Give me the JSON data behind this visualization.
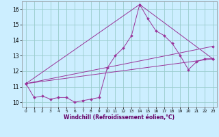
{
  "xlabel": "Windchill (Refroidissement éolien,°C)",
  "bg_color": "#cceeff",
  "grid_color": "#99cccc",
  "line_color": "#993399",
  "xlim": [
    -0.5,
    23.5
  ],
  "ylim": [
    9.7,
    16.5
  ],
  "yticks": [
    10,
    11,
    12,
    13,
    14,
    15,
    16
  ],
  "xticks": [
    0,
    1,
    2,
    3,
    4,
    5,
    6,
    7,
    8,
    9,
    10,
    11,
    12,
    13,
    14,
    15,
    16,
    17,
    18,
    19,
    20,
    21,
    22,
    23
  ],
  "series": [
    {
      "x": [
        0,
        1,
        2,
        3,
        4,
        5,
        6,
        7,
        8,
        9,
        10,
        11,
        12,
        13,
        14,
        15,
        16,
        17,
        18,
        19,
        20,
        21,
        22,
        23
      ],
      "y": [
        11.2,
        10.3,
        10.4,
        10.2,
        10.3,
        10.3,
        10.0,
        10.1,
        10.2,
        10.3,
        12.2,
        13.0,
        13.5,
        14.3,
        16.3,
        15.4,
        14.6,
        14.3,
        13.8,
        13.0,
        12.1,
        12.6,
        12.8,
        12.8
      ]
    },
    {
      "x": [
        0,
        14,
        23
      ],
      "y": [
        11.2,
        16.3,
        12.8
      ]
    },
    {
      "x": [
        0,
        23
      ],
      "y": [
        11.2,
        12.8
      ]
    },
    {
      "x": [
        0,
        23
      ],
      "y": [
        11.2,
        13.6
      ]
    }
  ]
}
